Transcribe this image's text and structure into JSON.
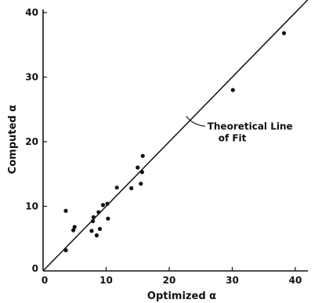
{
  "chart_data": {
    "type": "scatter",
    "title": "",
    "xlabel": "Optimized  α",
    "ylabel": "Computed  α",
    "xlim": [
      0,
      42
    ],
    "ylim": [
      0,
      40
    ],
    "xticks": [
      0,
      10,
      20,
      30,
      40
    ],
    "yticks": [
      0,
      10,
      20,
      30,
      40
    ],
    "grid": false,
    "series": [
      {
        "points": [
          {
            "x": 3.6,
            "y": 9.3
          },
          {
            "x": 3.6,
            "y": 3.2
          },
          {
            "x": 4.8,
            "y": 6.3
          },
          {
            "x": 5.0,
            "y": 6.8
          },
          {
            "x": 7.7,
            "y": 6.2
          },
          {
            "x": 7.9,
            "y": 7.7
          },
          {
            "x": 8.0,
            "y": 8.3
          },
          {
            "x": 8.5,
            "y": 5.5
          },
          {
            "x": 8.8,
            "y": 9.1
          },
          {
            "x": 9.0,
            "y": 6.5
          },
          {
            "x": 9.5,
            "y": 10.2
          },
          {
            "x": 10.2,
            "y": 10.4
          },
          {
            "x": 10.3,
            "y": 8.1
          },
          {
            "x": 11.7,
            "y": 12.9
          },
          {
            "x": 14.0,
            "y": 12.8
          },
          {
            "x": 15.0,
            "y": 16.0
          },
          {
            "x": 15.5,
            "y": 13.5
          },
          {
            "x": 15.7,
            "y": 15.3
          },
          {
            "x": 15.8,
            "y": 17.8
          },
          {
            "x": 30.1,
            "y": 28.0
          },
          {
            "x": 38.2,
            "y": 36.8
          }
        ]
      }
    ],
    "fit_line": {
      "x": [
        0,
        42
      ],
      "y": [
        0,
        42
      ]
    },
    "annotation": {
      "lines": [
        "Theoretical  Line",
        "of  Fit"
      ],
      "points_to": {
        "x": 22.2,
        "y": 23.6
      }
    }
  }
}
